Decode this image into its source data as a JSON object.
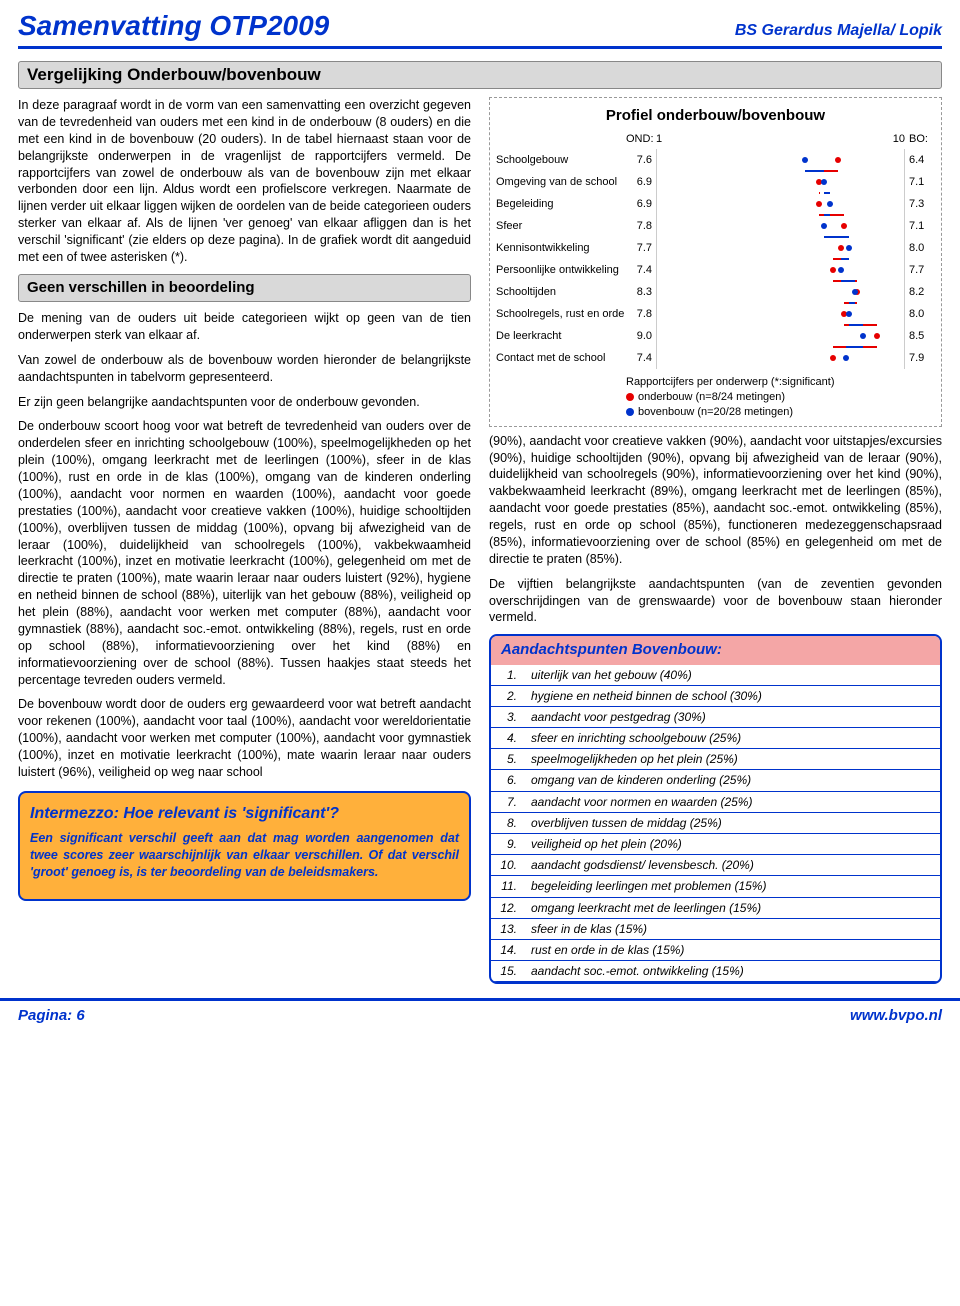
{
  "header": {
    "title": "Samenvatting OTP2009",
    "school": "BS Gerardus Majella/ Lopik"
  },
  "main_section_title": "Vergelijking Onderbouw/bovenbouw",
  "intro_p1": "In deze paragraaf wordt in de vorm van een samenvatting een overzicht gegeven van de tevredenheid van ouders met een kind in de onderbouw (8 ouders) en die met een kind in de bovenbouw (20 ouders). In de tabel hiernaast staan voor de belangrijkste onderwerpen in de vragenlijst de rapportcijfers vermeld. De rapportcijfers van zowel de onderbouw als van de bovenbouw zijn met elkaar verbonden door een lijn. Aldus wordt een profielscore verkregen. Naarmate de lijnen verder uit elkaar liggen wijken de oordelen van de beide categorieen ouders sterker van elkaar af. Als de lijnen 'ver genoeg' van elkaar afliggen dan is het verschil 'significant' (zie elders op deze pagina). In de grafiek wordt dit aangeduid met een of twee asterisken (*).",
  "sub_title_1": "Geen verschillen in beoordeling",
  "p2": "De mening van de ouders uit beide categorieen wijkt op geen van de tien onderwerpen sterk van elkaar af.",
  "p3": "Van zowel de onderbouw als de bovenbouw worden hieronder de belangrijkste aandachtspunten in tabelvorm gepresenteerd.",
  "p4": "Er zijn geen belangrijke aandachtspunten voor de onderbouw gevonden.",
  "p5": "De onderbouw scoort hoog voor wat betreft de tevredenheid van ouders over de onderdelen sfeer en inrichting schoolgebouw (100%), speelmogelijkheden op het plein (100%), omgang leerkracht met de leerlingen (100%), sfeer in de klas (100%), rust en orde in de klas (100%), omgang van de kinderen onderling (100%), aandacht voor normen en waarden (100%), aandacht voor goede prestaties (100%), aandacht voor creatieve vakken (100%), huidige schooltijden (100%), overblijven tussen de middag (100%), opvang bij afwezigheid van de leraar (100%), duidelijkheid van schoolregels (100%), vakbekwaamheid leerkracht (100%), inzet en motivatie leerkracht (100%), gelegenheid om met de directie te praten (100%), mate waarin leraar naar ouders luistert (92%), hygiene en netheid binnen de school (88%), uiterlijk van het gebouw (88%), veiligheid op het plein (88%), aandacht voor werken met computer (88%), aandacht voor gymnastiek (88%), aandacht soc.-emot. ontwikkeling (88%), regels, rust en orde op school (88%), informatievoorziening over het kind (88%) en informatievoorziening over de school (88%). Tussen haakjes staat steeds het percentage tevreden ouders vermeld.",
  "p6": "De bovenbouw wordt door de ouders erg gewaardeerd voor wat betreft aandacht voor rekenen (100%), aandacht voor taal (100%), aandacht voor wereldorientatie (100%), aandacht voor werken met computer (100%), aandacht voor gymnastiek (100%), inzet en motivatie leerkracht (100%), mate waarin leraar naar ouders luistert (96%), veiligheid op weg naar school",
  "right_p1": "(90%), aandacht voor creatieve vakken (90%), aandacht voor uitstapjes/excursies (90%), huidige schooltijden (90%), opvang bij afwezigheid van de leraar (90%), duidelijkheid van schoolregels (90%), informatievoorziening over het kind (90%), vakbekwaamheid leerkracht (89%), omgang leerkracht met de leerlingen (85%), aandacht voor goede prestaties (85%), aandacht soc.-emot. ontwikkeling (85%), regels, rust en orde op school (85%), functioneren medezeggenschapsraad (85%), informatievoorziening over de school (85%) en gelegenheid om met de directie te praten (85%).",
  "right_p2": "De vijftien belangrijkste aandachtspunten (van de zeventien gevonden overschrijdingen van de grenswaarde) voor de bovenbouw staan hieronder vermeld.",
  "intermezzo": {
    "title": "Intermezzo: Hoe relevant is 'significant'?",
    "body": "Een significant verschil geeft aan dat mag worden aangenomen dat twee scores zeer waarschijnlijk van elkaar verschillen. Of dat verschil 'groot' genoeg is, is ter beoordeling van de beleidsmakers."
  },
  "chart": {
    "title": "Profiel onderbouw/bovenbouw",
    "axis_left_label": "OND:",
    "axis_min": "1",
    "axis_max": "10",
    "axis_right_label": "BO:",
    "color_ond": "#e60000",
    "color_bov": "#0033cc",
    "xmin": 1,
    "xmax": 10,
    "rows": [
      {
        "label": "Schoolgebouw",
        "ond": 7.6,
        "bov": 6.4
      },
      {
        "label": "Omgeving van de school",
        "ond": 6.9,
        "bov": 7.1
      },
      {
        "label": "Begeleiding",
        "ond": 6.9,
        "bov": 7.3
      },
      {
        "label": "Sfeer",
        "ond": 7.8,
        "bov": 7.1
      },
      {
        "label": "Kennisontwikkeling",
        "ond": 7.7,
        "bov": 8.0
      },
      {
        "label": "Persoonlijke ontwikkeling",
        "ond": 7.4,
        "bov": 7.7
      },
      {
        "label": "Schooltijden",
        "ond": 8.3,
        "bov": 8.2
      },
      {
        "label": "Schoolregels, rust en orde",
        "ond": 7.8,
        "bov": 8.0
      },
      {
        "label": "De leerkracht",
        "ond": 9.0,
        "bov": 8.5
      },
      {
        "label": "Contact met de school",
        "ond": 7.4,
        "bov": 7.9
      }
    ],
    "legend_caption": "Rapportcijfers per onderwerp (*:significant)",
    "legend_ond": "onderbouw (n=8/24 metingen)",
    "legend_bov": "bovenbouw (n=20/28 metingen)"
  },
  "aandacht": {
    "title": "Aandachtspunten Bovenbouw:",
    "items": [
      {
        "n": "1.",
        "t": "uiterlijk van het gebouw (40%)"
      },
      {
        "n": "2.",
        "t": "hygiene en netheid binnen de school (30%)"
      },
      {
        "n": "3.",
        "t": "aandacht voor pestgedrag (30%)"
      },
      {
        "n": "4.",
        "t": "sfeer en inrichting schoolgebouw (25%)"
      },
      {
        "n": "5.",
        "t": "speelmogelijkheden op het plein (25%)"
      },
      {
        "n": "6.",
        "t": "omgang van de kinderen onderling (25%)"
      },
      {
        "n": "7.",
        "t": "aandacht voor normen en waarden (25%)"
      },
      {
        "n": "8.",
        "t": "overblijven tussen de middag (25%)"
      },
      {
        "n": "9.",
        "t": "veiligheid op het plein (20%)"
      },
      {
        "n": "10.",
        "t": "aandacht godsdienst/ levensbesch. (20%)"
      },
      {
        "n": "11.",
        "t": "begeleiding leerlingen met problemen (15%)"
      },
      {
        "n": "12.",
        "t": "omgang leerkracht met de leerlingen (15%)"
      },
      {
        "n": "13.",
        "t": "sfeer in de klas (15%)"
      },
      {
        "n": "14.",
        "t": "rust en orde in de klas (15%)"
      },
      {
        "n": "15.",
        "t": "aandacht soc.-emot. ontwikkeling (15%)"
      }
    ]
  },
  "footer": {
    "page": "Pagina: 6",
    "url": "www.bvpo.nl"
  }
}
